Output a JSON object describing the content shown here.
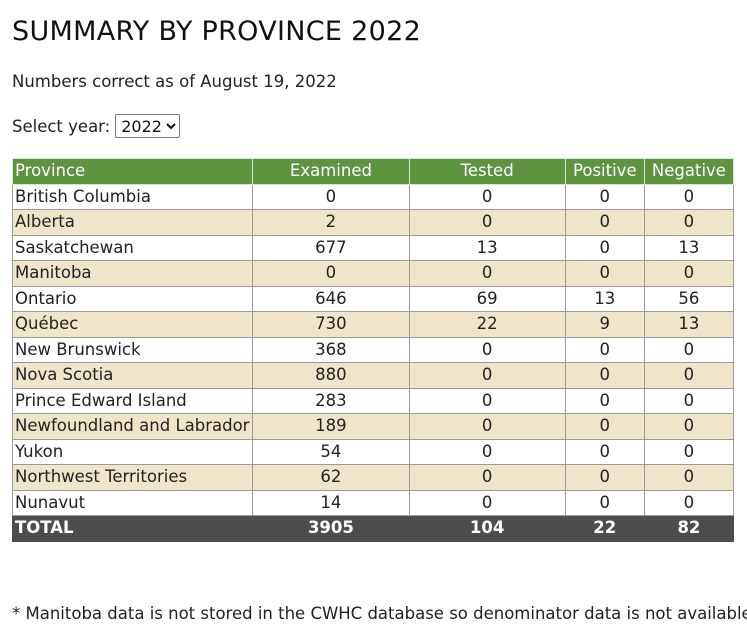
{
  "page": {
    "title": "SUMMARY BY PROVINCE 2022",
    "updated": "Numbers correct as of August 19, 2022",
    "year_label": "Select year:",
    "selected_year": "2022"
  },
  "table": {
    "headers": [
      "Province",
      "Examined",
      "Tested",
      "Positive",
      "Negative"
    ],
    "rows": [
      [
        "British Columbia",
        "0",
        "0",
        "0",
        "0"
      ],
      [
        "Alberta",
        "2",
        "0",
        "0",
        "0"
      ],
      [
        "Saskatchewan",
        "677",
        "13",
        "0",
        "13"
      ],
      [
        "Manitoba",
        "0",
        "0",
        "0",
        "0"
      ],
      [
        "Ontario",
        "646",
        "69",
        "13",
        "56"
      ],
      [
        "Québec",
        "730",
        "22",
        "9",
        "13"
      ],
      [
        "New Brunswick",
        "368",
        "0",
        "0",
        "0"
      ],
      [
        "Nova Scotia",
        "880",
        "0",
        "0",
        "0"
      ],
      [
        "Prince Edward Island",
        "283",
        "0",
        "0",
        "0"
      ],
      [
        "Newfoundland and Labrador",
        "189",
        "0",
        "0",
        "0"
      ],
      [
        "Yukon",
        "54",
        "0",
        "0",
        "0"
      ],
      [
        "Northwest Territories",
        "62",
        "0",
        "0",
        "0"
      ],
      [
        "Nunavut",
        "14",
        "0",
        "0",
        "0"
      ]
    ],
    "total": [
      "TOTAL",
      "3905",
      "104",
      "22",
      "82"
    ]
  },
  "footnote": "* Manitoba data is not stored in the CWHC database so denominator data is not available",
  "colors": {
    "header_green": "#5e9440",
    "alt_row_beige": "#efe5c8",
    "total_row_gray": "#4d4d4d"
  }
}
